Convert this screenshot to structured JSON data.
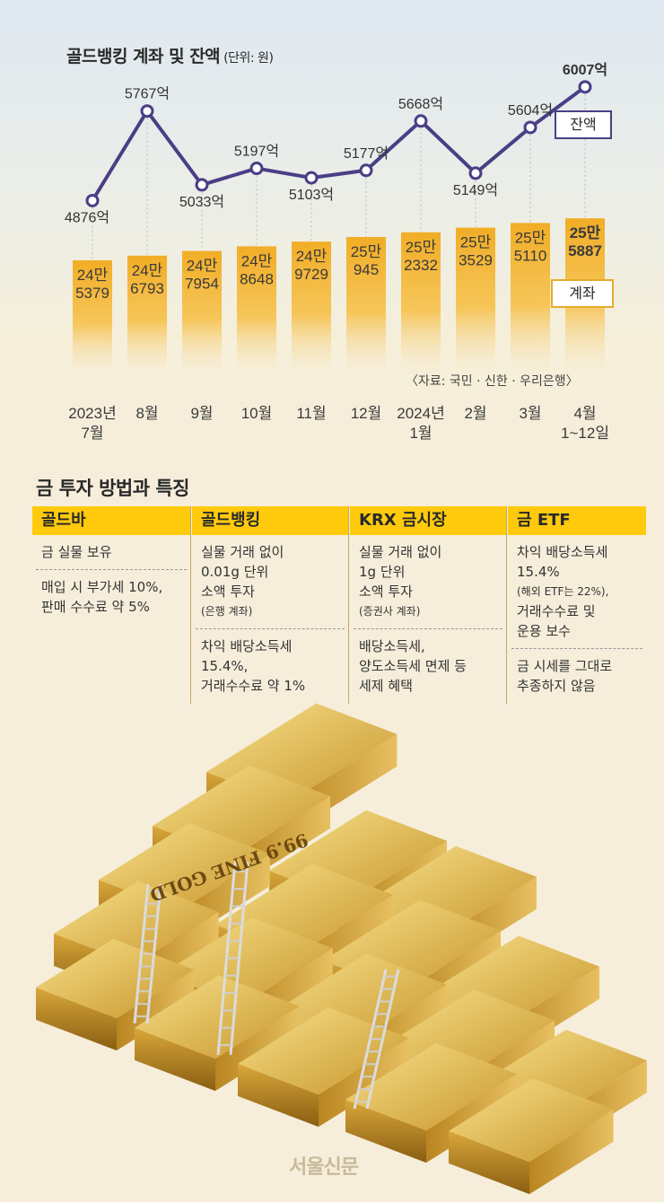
{
  "chart_data": {
    "type": "bar+line",
    "title": "골드뱅킹 계좌 및 잔액",
    "unit": "(단위: 원)",
    "categories": [
      [
        "2023년",
        "7월"
      ],
      [
        "8월"
      ],
      [
        "9월"
      ],
      [
        "10월"
      ],
      [
        "11월"
      ],
      [
        "12월"
      ],
      [
        "2024년",
        "1월"
      ],
      [
        "2월"
      ],
      [
        "3월"
      ],
      [
        "4월",
        "1~12일"
      ]
    ],
    "accounts": {
      "name": "계좌",
      "values": [
        245379,
        246793,
        247954,
        248648,
        249729,
        250945,
        252332,
        253529,
        255110,
        255887
      ],
      "labels": [
        [
          "24만",
          "5379"
        ],
        [
          "24만",
          "6793"
        ],
        [
          "24만",
          "7954"
        ],
        [
          "24만",
          "8648"
        ],
        [
          "24만",
          "9729"
        ],
        [
          "25만",
          "945"
        ],
        [
          "25만",
          "2332"
        ],
        [
          "25만",
          "3529"
        ],
        [
          "25만",
          "5110"
        ],
        [
          "25만",
          "5887"
        ]
      ]
    },
    "balance": {
      "name": "잔액",
      "values": [
        4876,
        5767,
        5033,
        5197,
        5103,
        5177,
        5668,
        5149,
        5604,
        6007
      ],
      "labels": [
        "4876억",
        "5767억",
        "5033억",
        "5197억",
        "5103억",
        "5177억",
        "5668억",
        "5149억",
        "5604억",
        "6007억"
      ]
    },
    "source": "〈자료: 국민 · 신한 · 우리은행〉"
  },
  "section2": {
    "title": "금 투자 방법과 특징",
    "columns": [
      {
        "head": "골드바",
        "cells": [
          [
            "금 실물 보유"
          ],
          [
            "매입 시 부가세 10%,",
            "판매 수수료 약 5%"
          ]
        ]
      },
      {
        "head": "골드뱅킹",
        "cells": [
          [
            "실물 거래 없이",
            "0.01g 단위",
            "소액 투자",
            "(은행 계좌)"
          ],
          [
            "차익 배당소득세",
            "15.4%,",
            "거래수수료 약 1%"
          ]
        ]
      },
      {
        "head": "KRX 금시장",
        "cells": [
          [
            "실물 거래 없이",
            "1g 단위",
            "소액 투자",
            "(증권사 계좌)"
          ],
          [
            "배당소득세,",
            "양도소득세 면제 등",
            "세제 혜택"
          ]
        ]
      },
      {
        "head": "금 ETF",
        "cells": [
          [
            "차익 배당소득세",
            "15.4%",
            "(해외 ETF는 22%),",
            "거래수수료 및",
            "운용 보수"
          ],
          [
            "금 시세를 그대로",
            "추종하지 않음"
          ]
        ]
      }
    ]
  },
  "bar_text": "99.9 FINE GOLD",
  "logo": "서울신문",
  "colors": {
    "bar": "#f2b333",
    "line": "#4a3e85",
    "header": "#ffca0b"
  }
}
